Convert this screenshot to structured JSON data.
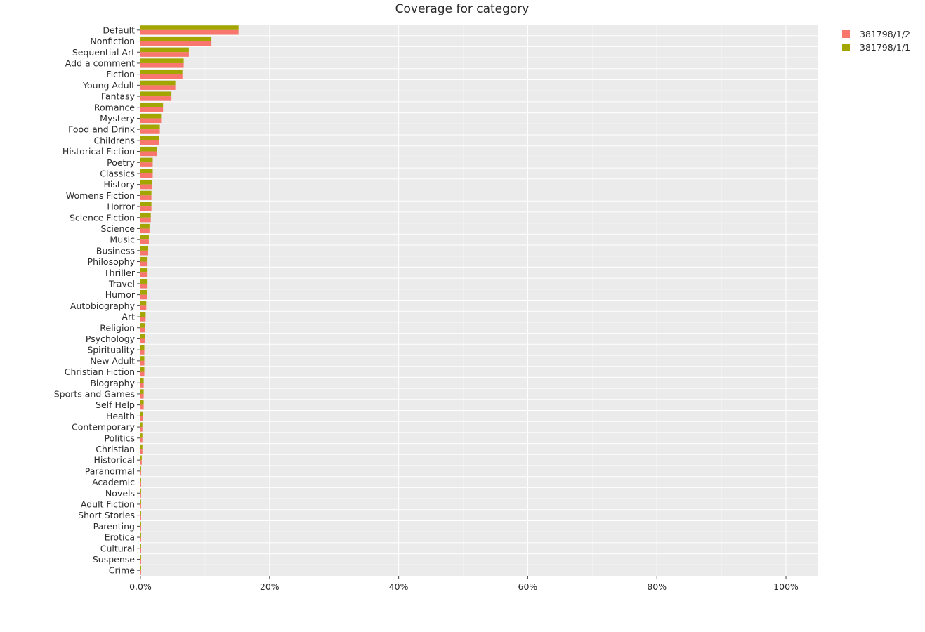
{
  "chart_data": {
    "type": "bar",
    "orientation": "horizontal",
    "title": "Coverage for category",
    "xlabel": "",
    "ylabel": "",
    "xlim": [
      0,
      1.05
    ],
    "x_tick_values": [
      0,
      0.2,
      0.4,
      0.6,
      0.8,
      1.0
    ],
    "x_tick_labels": [
      "0.0%",
      "20%",
      "40%",
      "60%",
      "80%",
      "100%"
    ],
    "grid": true,
    "legend_position": "top-right",
    "categories": [
      "Default",
      "Nonfiction",
      "Sequential Art",
      "Add a comment",
      "Fiction",
      "Young Adult",
      "Fantasy",
      "Romance",
      "Mystery",
      "Food and Drink",
      "Childrens",
      "Historical Fiction",
      "Poetry",
      "Classics",
      "History",
      "Womens Fiction",
      "Horror",
      "Science Fiction",
      "Science",
      "Music",
      "Business",
      "Philosophy",
      "Thriller",
      "Travel",
      "Humor",
      "Autobiography",
      "Art",
      "Religion",
      "Psychology",
      "Spirituality",
      "New Adult",
      "Christian Fiction",
      "Biography",
      "Sports and Games",
      "Self Help",
      "Health",
      "Contemporary",
      "Politics",
      "Christian",
      "Historical",
      "Paranormal",
      "Academic",
      "Novels",
      "Adult Fiction",
      "Short Stories",
      "Parenting",
      "Erotica",
      "Cultural",
      "Suspense",
      "Crime"
    ],
    "series": [
      {
        "name": "381798/1/2",
        "color": "#f8766d",
        "values": [
          0.152,
          0.11,
          0.075,
          0.067,
          0.065,
          0.054,
          0.048,
          0.035,
          0.032,
          0.03,
          0.029,
          0.026,
          0.019,
          0.019,
          0.018,
          0.017,
          0.017,
          0.016,
          0.014,
          0.013,
          0.012,
          0.011,
          0.011,
          0.011,
          0.01,
          0.009,
          0.008,
          0.007,
          0.007,
          0.006,
          0.006,
          0.006,
          0.005,
          0.005,
          0.005,
          0.004,
          0.003,
          0.003,
          0.003,
          0.002,
          0.001,
          0.001,
          0.001,
          0.001,
          0.001,
          0.001,
          0.001,
          0.001,
          0.001,
          0.001
        ]
      },
      {
        "name": "381798/1/1",
        "color": "#a3a500",
        "values": [
          0.152,
          0.11,
          0.075,
          0.067,
          0.065,
          0.054,
          0.048,
          0.035,
          0.032,
          0.03,
          0.029,
          0.026,
          0.019,
          0.019,
          0.018,
          0.017,
          0.017,
          0.016,
          0.014,
          0.013,
          0.012,
          0.011,
          0.011,
          0.011,
          0.01,
          0.009,
          0.008,
          0.007,
          0.007,
          0.006,
          0.006,
          0.006,
          0.005,
          0.005,
          0.005,
          0.004,
          0.003,
          0.003,
          0.003,
          0.002,
          0.001,
          0.001,
          0.001,
          0.001,
          0.001,
          0.001,
          0.001,
          0.001,
          0.001,
          0.001
        ]
      }
    ]
  }
}
